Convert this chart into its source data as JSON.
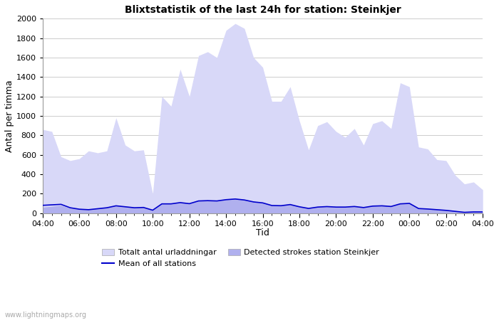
{
  "title": "Blixtstatistik of the last 24h for station: Steinkjer",
  "xlabel": "Tid",
  "ylabel": "Antal per timma",
  "watermark": "www.lightningmaps.org",
  "ylim": [
    0,
    2000
  ],
  "x_ticks": [
    "04:00",
    "06:00",
    "08:00",
    "10:00",
    "12:00",
    "14:00",
    "16:00",
    "18:00",
    "20:00",
    "22:00",
    "00:00",
    "02:00",
    "04:00"
  ],
  "total_color": "#d8d8f8",
  "station_color": "#b0b0ee",
  "mean_color": "#0000cc",
  "total_y": [
    860,
    840,
    580,
    540,
    560,
    640,
    620,
    640,
    980,
    700,
    640,
    650,
    200,
    1200,
    1100,
    1480,
    1200,
    1620,
    1660,
    1600,
    1880,
    1950,
    1900,
    1600,
    1500,
    1150,
    1150,
    1300,
    950,
    650,
    900,
    940,
    840,
    780,
    870,
    700,
    920,
    950,
    870,
    1340,
    1300,
    680,
    660,
    550,
    540,
    390,
    300,
    320,
    240
  ],
  "station_y": [
    60,
    70,
    80,
    50,
    40,
    40,
    50,
    60,
    80,
    70,
    60,
    60,
    30,
    100,
    100,
    110,
    100,
    130,
    130,
    130,
    140,
    150,
    140,
    120,
    110,
    80,
    80,
    90,
    70,
    50,
    65,
    70,
    65,
    65,
    70,
    60,
    75,
    80,
    70,
    100,
    105,
    50,
    45,
    40,
    30,
    20,
    10,
    15,
    15
  ],
  "mean_y": [
    80,
    85,
    90,
    55,
    40,
    35,
    45,
    55,
    75,
    65,
    55,
    58,
    30,
    95,
    95,
    108,
    97,
    125,
    128,
    125,
    138,
    145,
    135,
    115,
    105,
    78,
    76,
    88,
    65,
    48,
    62,
    67,
    62,
    62,
    68,
    57,
    72,
    75,
    68,
    95,
    100,
    47,
    42,
    35,
    28,
    18,
    8,
    12,
    12
  ],
  "n_points": 49,
  "legend_items": [
    "Totalt antal urladdningar",
    "Mean of all stations",
    "Detected strokes station Steinkjer"
  ],
  "title_fontsize": 10,
  "axis_label_fontsize": 9,
  "tick_fontsize": 8,
  "legend_fontsize": 8,
  "watermark_fontsize": 7
}
